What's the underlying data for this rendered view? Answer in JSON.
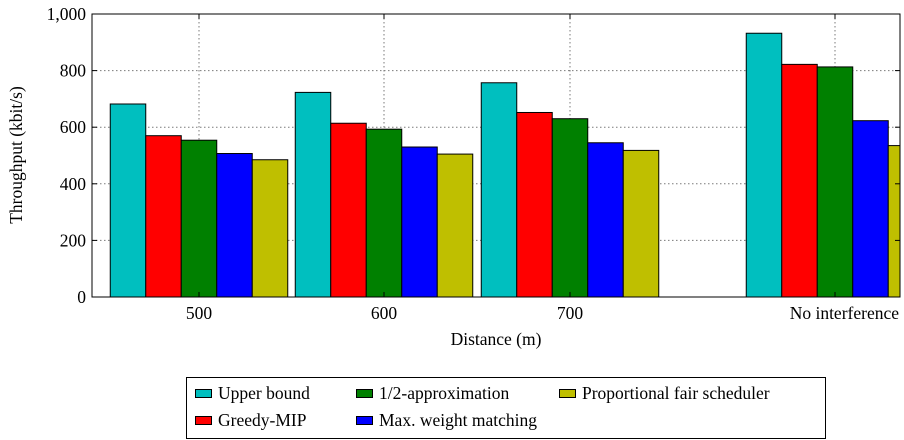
{
  "chart_data": {
    "type": "bar",
    "title": "",
    "xlabel": "Distance (m)",
    "ylabel": "Throughput (kbit/s)",
    "ylim": [
      0,
      1000
    ],
    "yticks": [
      "0",
      "200",
      "400",
      "600",
      "800",
      "1,000"
    ],
    "categories": [
      "500",
      "600",
      "700",
      "No interference"
    ],
    "grid": true,
    "legend_position": "bottom",
    "series": [
      {
        "name": "Upper bound",
        "color": "#00bfbf",
        "values": [
          682,
          723,
          757,
          932
        ]
      },
      {
        "name": "Greedy-MIP",
        "color": "#ff0000",
        "values": [
          570,
          614,
          652,
          822
        ]
      },
      {
        "name": "1/2-approximation",
        "color": "#008000",
        "values": [
          554,
          593,
          630,
          813
        ]
      },
      {
        "name": "Max. weight matching",
        "color": "#0000ff",
        "values": [
          507,
          530,
          545,
          623
        ]
      },
      {
        "name": "Proportional fair scheduler",
        "color": "#bfbf00",
        "values": [
          485,
          505,
          518,
          535
        ]
      }
    ]
  }
}
